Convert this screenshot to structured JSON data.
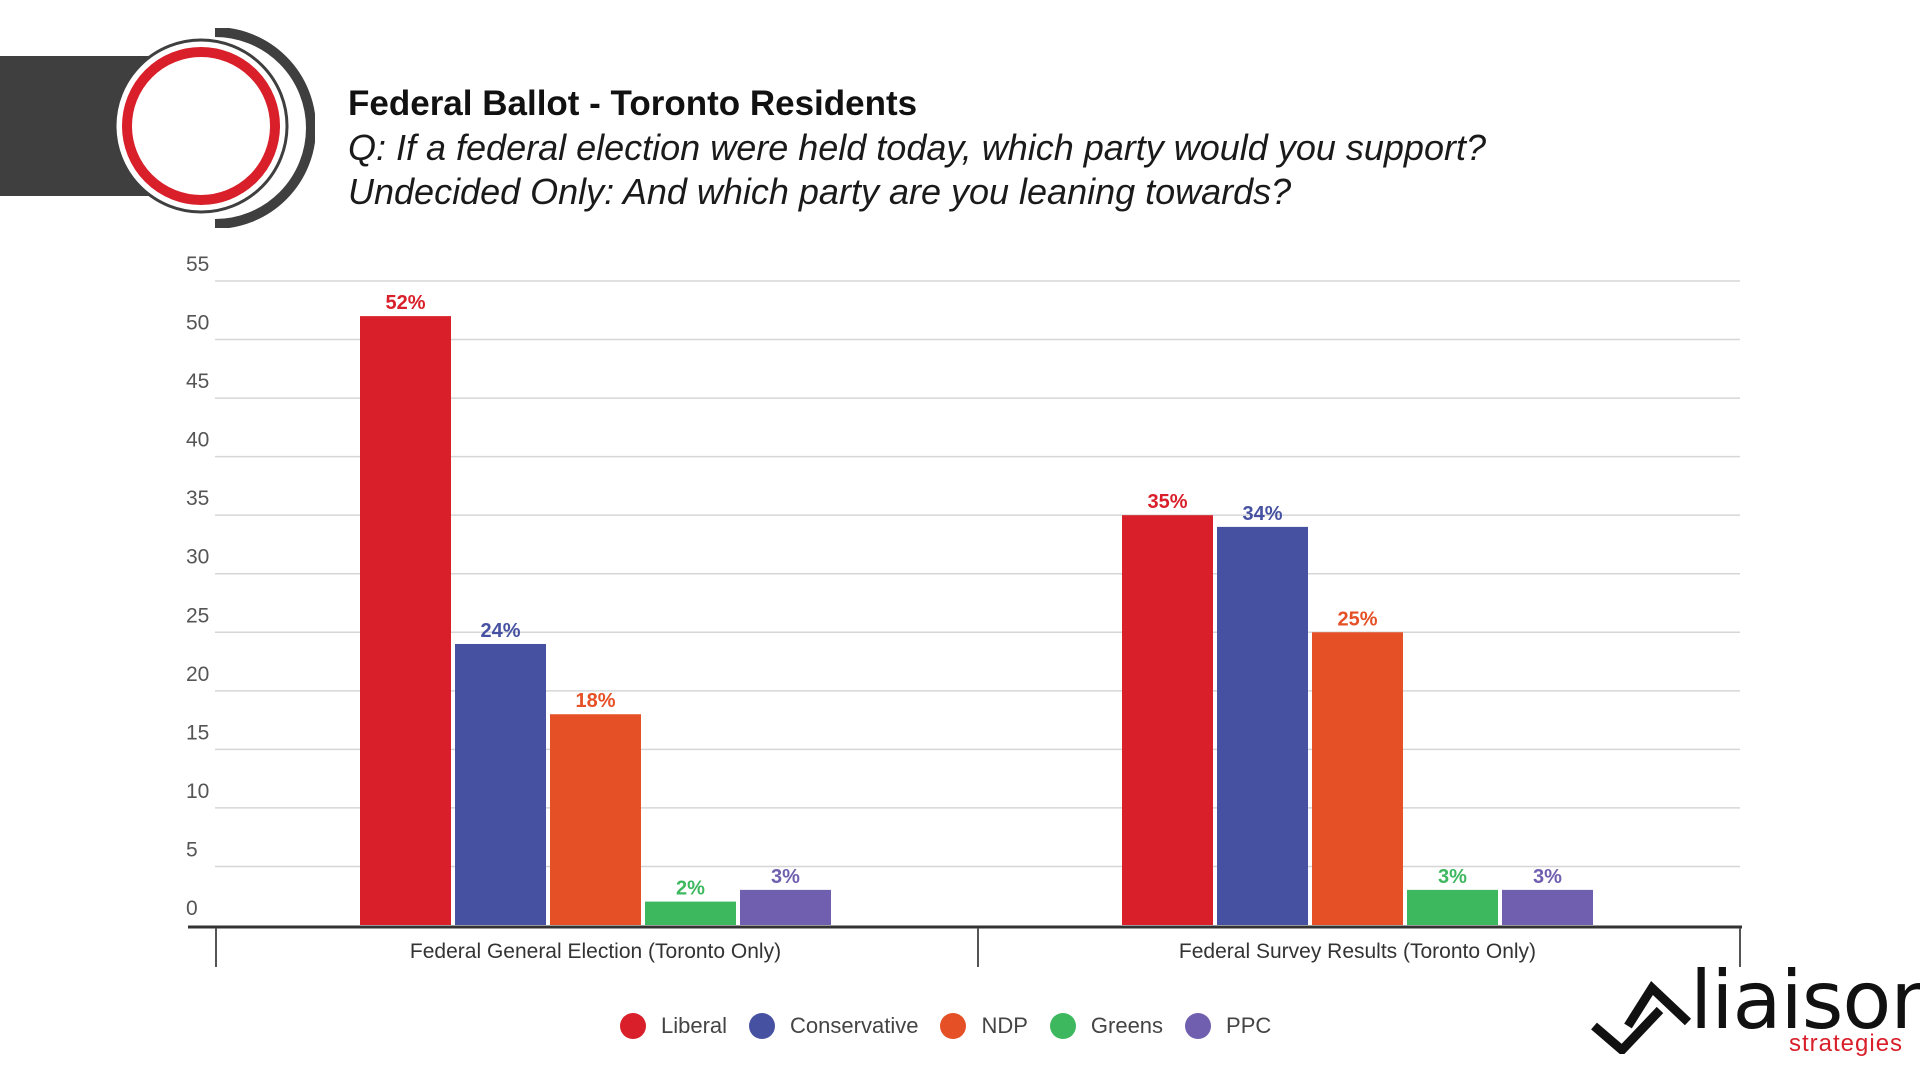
{
  "header": {
    "title": "Federal Ballot - Toronto Residents",
    "question": "Q: If a federal election were held today, which party would you support?",
    "question2": "Undecided Only: And which party are you leaning towards?"
  },
  "colors": {
    "liberal": "#d81f2a",
    "conservative": "#4652a1",
    "ndp": "#e65026",
    "greens": "#3db85f",
    "ppc": "#6f5fae",
    "header_bar": "#3f3f3f",
    "brand_red": "#d81f2a"
  },
  "chart_data": {
    "type": "bar",
    "categories": [
      "Federal General Election (Toronto Only)",
      "Federal Survey Results (Toronto Only)"
    ],
    "series": [
      {
        "name": "Liberal",
        "values": [
          52,
          35
        ],
        "color": "#d81f2a"
      },
      {
        "name": "Conservative",
        "values": [
          24,
          34
        ],
        "color": "#4652a1"
      },
      {
        "name": "NDP",
        "values": [
          18,
          25
        ],
        "color": "#e65026"
      },
      {
        "name": "Greens",
        "values": [
          2,
          3
        ],
        "color": "#3db85f"
      },
      {
        "name": "PPC",
        "values": [
          3,
          3
        ],
        "color": "#6f5fae"
      }
    ],
    "ylim": [
      0,
      55
    ],
    "yticks": [
      0,
      5,
      10,
      15,
      20,
      25,
      30,
      35,
      40,
      45,
      50,
      55
    ],
    "value_suffix": "%",
    "grid": true,
    "legend": "bottom-center",
    "xlabel": "",
    "ylabel": ""
  },
  "legend": {
    "items": [
      {
        "label": "Liberal",
        "color": "#d81f2a"
      },
      {
        "label": "Conservative",
        "color": "#4652a1"
      },
      {
        "label": "NDP",
        "color": "#e65026"
      },
      {
        "label": "Greens",
        "color": "#3db85f"
      },
      {
        "label": "PPC",
        "color": "#6f5fae"
      }
    ]
  },
  "brand": {
    "name": "liaison",
    "tagline": "strategies"
  }
}
